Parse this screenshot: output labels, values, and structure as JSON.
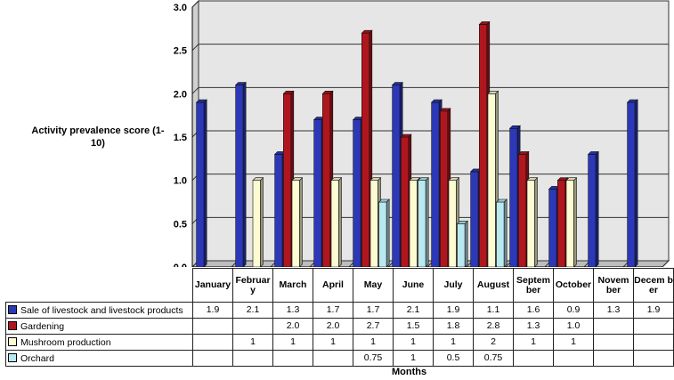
{
  "chart_data": {
    "type": "bar",
    "categories": [
      "January",
      "February",
      "March",
      "April",
      "May",
      "June",
      "July",
      "August",
      "September",
      "October",
      "November",
      "December"
    ],
    "category_labels": [
      "January",
      "Februar y",
      "March",
      "April",
      "May",
      "June",
      "July",
      "August",
      "Septem ber",
      "October",
      "Novem ber",
      "Decem ber"
    ],
    "ylabel": "Activity prevalence score (1-10)",
    "xlabel": "Months",
    "ylim": [
      0,
      3.0
    ],
    "yticks": [
      "0.0",
      "0.5",
      "1.0",
      "1.5",
      "2.0",
      "2.5",
      "3.0"
    ],
    "grid": true,
    "legend": "table-below",
    "series": [
      {
        "name": "Sale of livestock and livestock products",
        "color": "#2c38b8",
        "values": [
          1.9,
          2.1,
          1.3,
          1.7,
          1.7,
          2.1,
          1.9,
          1.1,
          1.6,
          0.9,
          1.3,
          1.9
        ],
        "labels": [
          "1.9",
          "2.1",
          "1.3",
          "1.7",
          "1.7",
          "2.1",
          "1.9",
          "1.1",
          "1.6",
          "0.9",
          "1.3",
          "1.9"
        ]
      },
      {
        "name": "Gardening",
        "color": "#b0161e",
        "values": [
          null,
          null,
          2.0,
          2.0,
          2.7,
          1.5,
          1.8,
          2.8,
          1.3,
          1.0,
          null,
          null
        ],
        "labels": [
          "",
          "",
          "2.0",
          "2.0",
          "2.7",
          "1.5",
          "1.8",
          "2.8",
          "1.3",
          "1.0",
          "",
          ""
        ]
      },
      {
        "name": "Mushroom production",
        "color": "#fdfbd2",
        "values": [
          null,
          1,
          1,
          1,
          1,
          1,
          1,
          2,
          1,
          1,
          null,
          null
        ],
        "labels": [
          "",
          "1",
          "1",
          "1",
          "1",
          "1",
          "1",
          "2",
          "1",
          "1",
          "",
          ""
        ]
      },
      {
        "name": "Orchard",
        "color": "#b8e8f0",
        "values": [
          null,
          null,
          null,
          null,
          0.75,
          1,
          0.5,
          0.75,
          null,
          null,
          null,
          null
        ],
        "labels": [
          "",
          "",
          "",
          "",
          "0.75",
          "1",
          "0.5",
          "0.75",
          "",
          "",
          "",
          ""
        ]
      }
    ]
  }
}
